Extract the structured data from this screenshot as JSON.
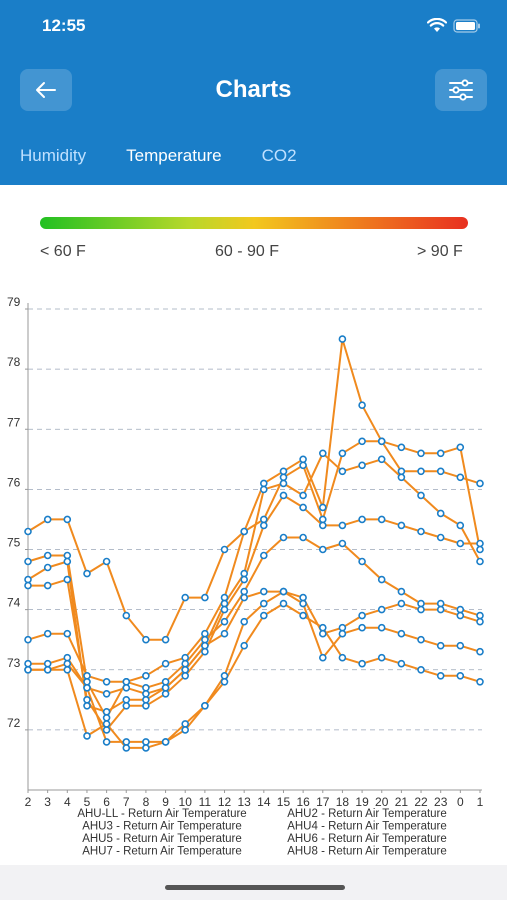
{
  "status_bar": {
    "time": "12:55"
  },
  "header": {
    "title": "Charts",
    "back_icon": "arrow-left-icon",
    "filter_icon": "sliders-icon"
  },
  "tabs": [
    {
      "label": "Humidity",
      "active": false
    },
    {
      "label": "Temperature",
      "active": true
    },
    {
      "label": "CO2",
      "active": false
    }
  ],
  "scale": {
    "low": "< 60 F",
    "mid": "60 - 90 F",
    "high": "> 90 F",
    "colors": [
      "#22c022",
      "#f2c81e",
      "#e83020"
    ]
  },
  "chart_data": {
    "type": "line",
    "line_color": "#f08a1e",
    "marker_color": "#1a7ec8",
    "x": [
      "2",
      "3",
      "4",
      "5",
      "6",
      "7",
      "8",
      "9",
      "10",
      "11",
      "12",
      "13",
      "14",
      "15",
      "16",
      "17",
      "18",
      "19",
      "20",
      "21",
      "22",
      "23",
      "0",
      "1"
    ],
    "ylim": [
      71,
      79
    ],
    "yticks": [
      "72",
      "73",
      "74",
      "75",
      "76",
      "77",
      "78",
      "79"
    ],
    "grid": true,
    "legend": [
      "AHU-LL - Return Air Temperature",
      "AHU2 - Return Air Temperature",
      "AHU3 - Return Air Temperature",
      "AHU4 - Return Air Temperature",
      "AHU5 - Return Air Temperature",
      "AHU6 - Return Air Temperature",
      "AHU7 - Return Air Temperature",
      "AHU8 - Return Air Temperature"
    ],
    "legend_position": "bottom",
    "series": [
      {
        "name": "AHU-LL - Return Air Temperature",
        "values": [
          75.3,
          75.5,
          75.5,
          74.6,
          74.8,
          73.9,
          73.5,
          73.5,
          74.2,
          74.2,
          75.0,
          75.3,
          76.1,
          76.3,
          76.5,
          75.7,
          78.5,
          77.4,
          76.8,
          76.3,
          76.3,
          76.3,
          76.2,
          76.1
        ]
      },
      {
        "name": "AHU2 - Return Air Temperature",
        "values": [
          74.8,
          74.9,
          74.9,
          72.8,
          72.2,
          72.8,
          72.9,
          73.1,
          73.2,
          73.6,
          74.2,
          75.3,
          75.5,
          76.2,
          76.4,
          75.5,
          76.6,
          76.8,
          76.8,
          76.7,
          76.6,
          76.6,
          76.7,
          75.0
        ]
      },
      {
        "name": "AHU3 - Return Air Temperature",
        "values": [
          74.5,
          74.7,
          74.8,
          72.4,
          72.3,
          72.5,
          72.5,
          72.7,
          73.0,
          73.4,
          74.1,
          74.6,
          76.0,
          76.1,
          75.9,
          76.6,
          76.3,
          76.4,
          76.5,
          76.2,
          75.9,
          75.6,
          75.4,
          74.8
        ]
      },
      {
        "name": "AHU4 - Return Air Temperature",
        "values": [
          74.4,
          74.4,
          74.5,
          72.5,
          72.0,
          72.4,
          72.4,
          72.6,
          72.9,
          73.3,
          74.0,
          74.5,
          75.4,
          75.9,
          75.7,
          75.4,
          75.4,
          75.5,
          75.5,
          75.4,
          75.3,
          75.2,
          75.1,
          75.1
        ]
      },
      {
        "name": "AHU5 - Return Air Temperature",
        "values": [
          73.5,
          73.6,
          73.6,
          72.9,
          72.8,
          72.8,
          72.7,
          72.8,
          73.1,
          73.5,
          73.8,
          74.3,
          74.9,
          75.2,
          75.2,
          75.0,
          75.1,
          74.8,
          74.5,
          74.3,
          74.1,
          74.1,
          74.0,
          73.9
        ]
      },
      {
        "name": "AHU6 - Return Air Temperature",
        "values": [
          73.1,
          73.1,
          73.2,
          72.7,
          72.6,
          72.7,
          72.6,
          72.7,
          73.0,
          73.4,
          73.6,
          74.2,
          74.3,
          74.3,
          74.2,
          73.6,
          73.7,
          73.9,
          74.0,
          74.1,
          74.0,
          74.0,
          73.9,
          73.8
        ]
      },
      {
        "name": "AHU7 - Return Air Temperature",
        "values": [
          73.0,
          73.0,
          73.1,
          72.7,
          71.8,
          71.8,
          71.8,
          71.8,
          72.1,
          72.4,
          72.9,
          73.8,
          74.1,
          74.3,
          74.1,
          73.2,
          73.6,
          73.7,
          73.7,
          73.6,
          73.5,
          73.4,
          73.4,
          73.3
        ]
      },
      {
        "name": "AHU8 - Return Air Temperature",
        "values": [
          73.0,
          73.0,
          73.0,
          71.9,
          72.1,
          71.7,
          71.7,
          71.8,
          72.0,
          72.4,
          72.8,
          73.4,
          73.9,
          74.1,
          73.9,
          73.7,
          73.2,
          73.1,
          73.2,
          73.1,
          73.0,
          72.9,
          72.9,
          72.8
        ]
      }
    ]
  }
}
